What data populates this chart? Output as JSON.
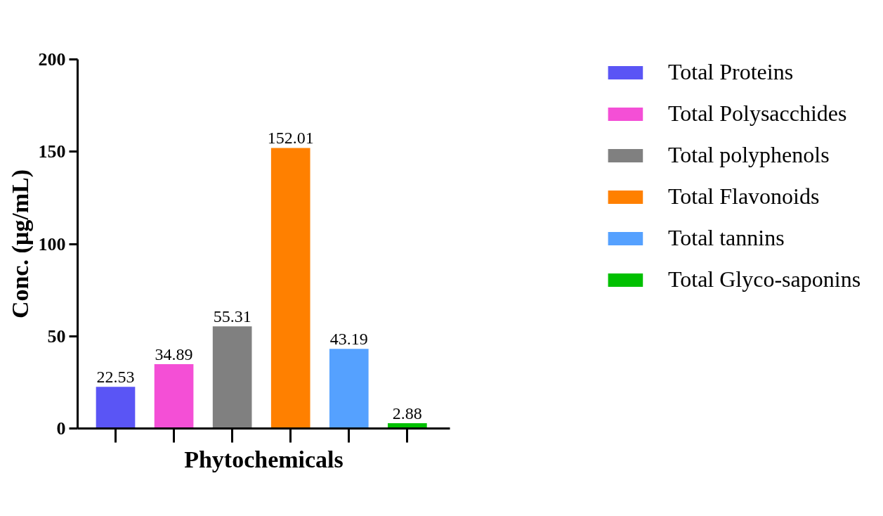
{
  "chart_data": {
    "type": "bar",
    "xlabel": "Phytochemicals",
    "ylabel": "Conc. (µg/mL)",
    "categories": [
      null,
      null,
      null,
      null,
      null,
      null
    ],
    "series": [
      {
        "name": "Total Proteins",
        "color": "#5a55f5",
        "values": [
          22.53,
          null,
          null,
          null,
          null,
          null
        ]
      },
      {
        "name": "Total Polysacchides",
        "color": "#f44fd6",
        "values": [
          null,
          34.89,
          null,
          null,
          null,
          null
        ]
      },
      {
        "name": "Total polyphenols",
        "color": "#808080",
        "values": [
          null,
          null,
          55.31,
          null,
          null,
          null
        ]
      },
      {
        "name": "Total Flavonoids",
        "color": "#ff8000",
        "values": [
          null,
          null,
          null,
          152.01,
          null,
          null
        ]
      },
      {
        "name": "Total tannins",
        "color": "#55a1ff",
        "values": [
          null,
          null,
          null,
          null,
          43.19,
          null
        ]
      },
      {
        "name": "Total Glyco-saponins",
        "color": "#00c000",
        "values": [
          null,
          null,
          null,
          null,
          null,
          2.88
        ]
      }
    ],
    "ylim": [
      0,
      200
    ],
    "yticks": [
      0,
      50,
      100,
      150,
      200
    ],
    "data_labels": true,
    "legend": "right",
    "tick_labels": "y"
  }
}
